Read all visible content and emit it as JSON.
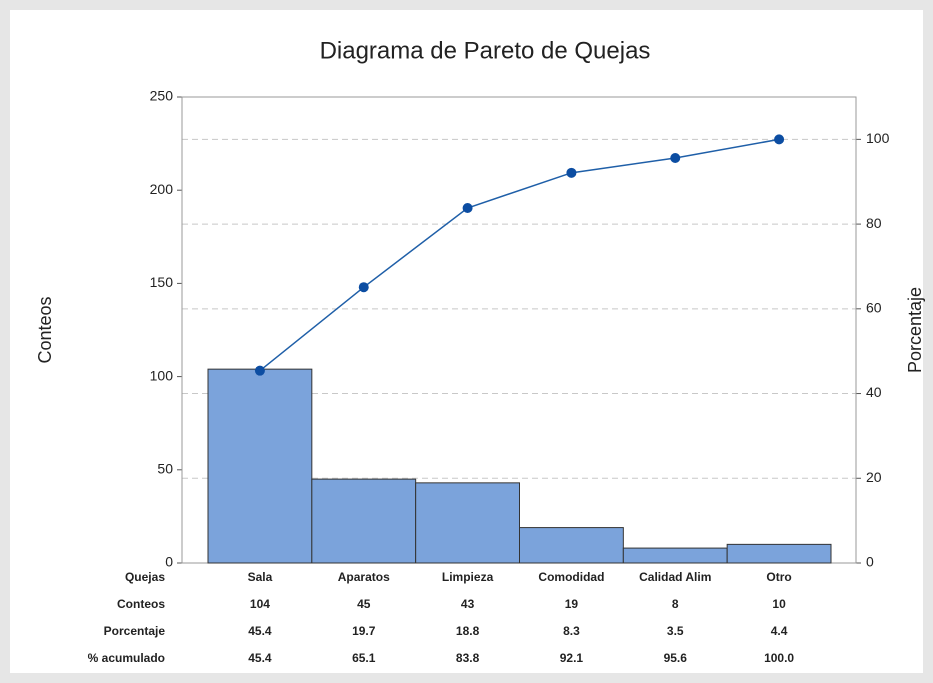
{
  "chart_data": {
    "type": "pareto",
    "title": "Diagrama de Pareto de Quejas",
    "ylabel": "Conteos",
    "y2label": "Porcentaje",
    "xlabel": "Quejas",
    "categories": [
      "Sala",
      "Aparatos",
      "Limpieza",
      "Comodidad",
      "Calidad Alim",
      "Otro"
    ],
    "series": [
      {
        "name": "Conteos",
        "color": "#7ba3db",
        "values": [
          104,
          45,
          43,
          19,
          8,
          10
        ]
      },
      {
        "name": "% acumulado",
        "color": "#1f5fa8",
        "axis": "y2",
        "values": [
          45.4,
          65.1,
          83.8,
          92.1,
          95.6,
          100
        ],
        "value_labels": [
          "45.4",
          "65.1",
          "83.8",
          "92.1",
          "95.6",
          "100.0"
        ]
      }
    ],
    "percent": {
      "name": "Porcentaje",
      "values": [
        45.4,
        19.7,
        18.8,
        8.3,
        3.5,
        4.4
      ]
    },
    "ylim": [
      0,
      250
    ],
    "yticks": [
      0,
      50,
      100,
      150,
      200,
      250
    ],
    "y2lim": [
      0,
      110
    ],
    "y2ticks": [
      0,
      20,
      40,
      60,
      80,
      100
    ],
    "grid": true
  }
}
